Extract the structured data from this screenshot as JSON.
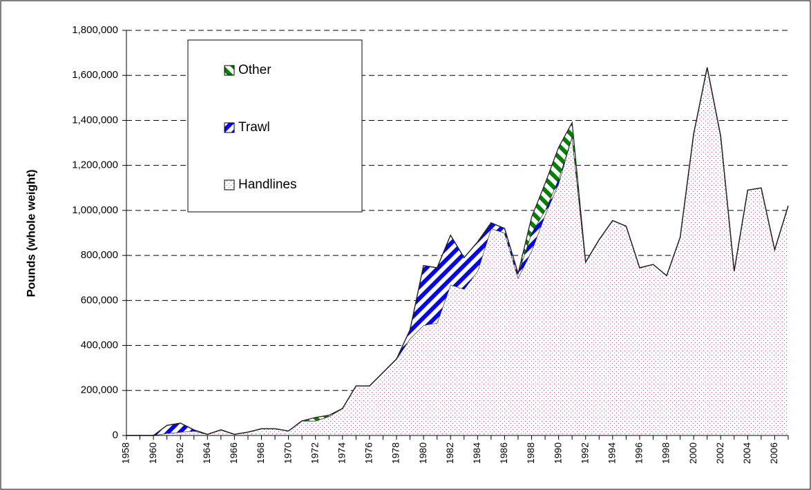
{
  "chart_data": {
    "type": "stacked_area",
    "y_label": "Pounds (whole weight)",
    "x": [
      1958,
      1959,
      1960,
      1961,
      1962,
      1963,
      1964,
      1965,
      1966,
      1967,
      1968,
      1969,
      1970,
      1971,
      1972,
      1973,
      1974,
      1975,
      1976,
      1977,
      1978,
      1979,
      1980,
      1981,
      1982,
      1983,
      1984,
      1985,
      1986,
      1987,
      1988,
      1989,
      1990,
      1991,
      1992,
      1993,
      1994,
      1995,
      1996,
      1997,
      1998,
      1999,
      2000,
      2001,
      2002,
      2003,
      2004,
      2005,
      2006,
      2007
    ],
    "series": [
      {
        "name": "Handlines",
        "color": "#b0507a",
        "values": [
          0,
          0,
          0,
          10000,
          15000,
          20000,
          5000,
          25000,
          5000,
          15000,
          30000,
          30000,
          20000,
          65000,
          65000,
          85000,
          120000,
          220000,
          220000,
          280000,
          340000,
          430000,
          490000,
          500000,
          670000,
          650000,
          730000,
          920000,
          900000,
          700000,
          820000,
          980000,
          1120000,
          1330000,
          770000,
          870000,
          955000,
          930000,
          745000,
          760000,
          710000,
          880000,
          1340000,
          1635000,
          1330000,
          730000,
          1090000,
          1100000,
          825000,
          1020000
        ]
      },
      {
        "name": "Trawl",
        "color": "#0000ff",
        "values": [
          0,
          0,
          0,
          35000,
          40000,
          5000,
          0,
          0,
          0,
          0,
          0,
          0,
          0,
          0,
          0,
          0,
          0,
          0,
          0,
          0,
          0,
          40000,
          265000,
          245000,
          220000,
          140000,
          130000,
          25000,
          20000,
          20000,
          80000,
          20000,
          20000,
          0,
          0,
          0,
          0,
          0,
          0,
          0,
          0,
          0,
          0,
          0,
          0,
          0,
          0,
          0,
          0,
          0
        ]
      },
      {
        "name": "Other",
        "color": "#008000",
        "values": [
          0,
          0,
          0,
          0,
          0,
          0,
          0,
          0,
          0,
          0,
          0,
          0,
          0,
          0,
          15000,
          5000,
          0,
          0,
          0,
          0,
          0,
          0,
          0,
          0,
          0,
          0,
          0,
          0,
          0,
          0,
          70000,
          120000,
          140000,
          60000,
          0,
          0,
          0,
          0,
          0,
          0,
          0,
          0,
          0,
          0,
          0,
          0,
          0,
          0,
          0,
          0
        ]
      }
    ],
    "legend_order": [
      "Other",
      "Trawl",
      "Handlines"
    ],
    "xlim": [
      1958,
      2007
    ],
    "xticks": [
      1958,
      1960,
      1962,
      1964,
      1966,
      1968,
      1970,
      1972,
      1974,
      1976,
      1978,
      1980,
      1982,
      1984,
      1986,
      1988,
      1990,
      1992,
      1994,
      1996,
      1998,
      2000,
      2002,
      2004,
      2006
    ],
    "ylim": [
      0,
      1800000
    ],
    "yticks": [
      0,
      {
        "value": 200000,
        "label": "200,000"
      },
      {
        "value": 400000,
        "label": "400,000"
      },
      {
        "value": 600000,
        "label": "600,000"
      },
      {
        "value": 800000,
        "label": "800,000"
      },
      {
        "value": 1000000,
        "label": "1,000,000"
      },
      {
        "value": 1200000,
        "label": "1,200,000"
      },
      {
        "value": 1400000,
        "label": "1,400,000"
      },
      {
        "value": 1600000,
        "label": "1,600,000"
      },
      {
        "value": 1800000,
        "label": "1,800,000"
      }
    ],
    "grid": true
  }
}
